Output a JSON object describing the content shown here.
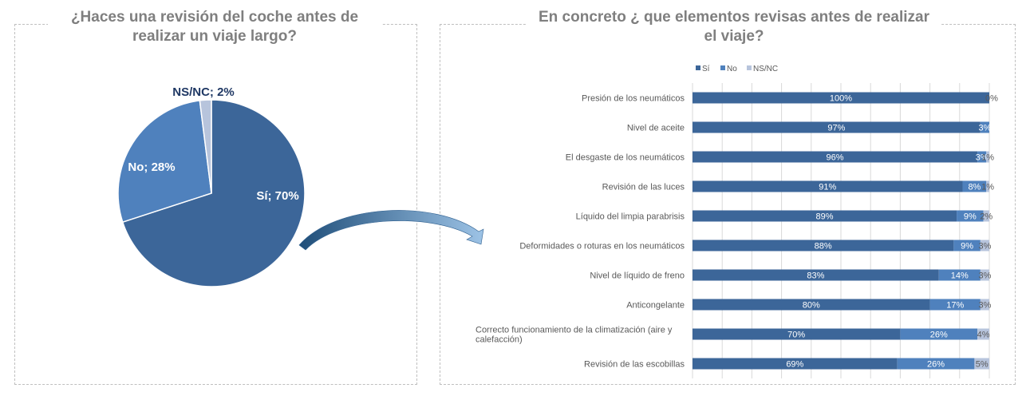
{
  "colors": {
    "si": "#3c6699",
    "no": "#4f81bd",
    "nsnc": "#b7c4dc",
    "label": "#595959",
    "grid": "#d9d9d9"
  },
  "chart_data": [
    {
      "type": "pie",
      "title": "¿Haces una revisión del coche antes de realizar un viaje largo?",
      "slices": [
        {
          "name": "Sí",
          "value": 70,
          "label": "Sí; 70%"
        },
        {
          "name": "No",
          "value": 28,
          "label": "No; 28%"
        },
        {
          "name": "NS/NC",
          "value": 2,
          "label": "NS/NC; 2%"
        }
      ]
    },
    {
      "type": "bar",
      "orientation": "horizontal",
      "stacked": true,
      "title": "En concreto ¿ que elementos revisas antes de realizar el viaje?",
      "legend_position": "top",
      "xlim": [
        0,
        100
      ],
      "grid": true,
      "categories": [
        "Presión de los neumáticos",
        "Nivel de aceite",
        "El desgaste de los neumáticos",
        "Revisión de las luces",
        "Líquido del limpia parabrisis",
        "Deformidades o roturas en los neumáticos",
        "Nivel de líquido de freno",
        "Anticongelante",
        "Correcto funcionamiento de la climatización (aire y calefacción)",
        "Revisión de las escobillas"
      ],
      "series": [
        {
          "name": "Sí",
          "values": [
            100,
            97,
            96,
            91,
            89,
            88,
            83,
            80,
            70,
            69
          ],
          "labels": [
            "100%",
            "97%",
            "96%",
            "91%",
            "89%",
            "88%",
            "83%",
            "80%",
            "70%",
            "69%"
          ]
        },
        {
          "name": "No",
          "values": [
            0,
            3,
            3,
            8,
            9,
            9,
            14,
            17,
            26,
            26
          ],
          "labels": [
            "",
            "3%",
            "3%",
            "8%",
            "9%",
            "9%",
            "14%",
            "17%",
            "26%",
            "26%"
          ]
        },
        {
          "name": "NS/NC",
          "values": [
            0,
            0,
            1,
            1,
            2,
            3,
            3,
            3,
            4,
            5
          ],
          "labels": [
            "0%",
            "",
            "1%",
            "1%",
            "2%",
            "3%",
            "3%",
            "3%",
            "4%",
            "5%"
          ]
        }
      ]
    }
  ]
}
